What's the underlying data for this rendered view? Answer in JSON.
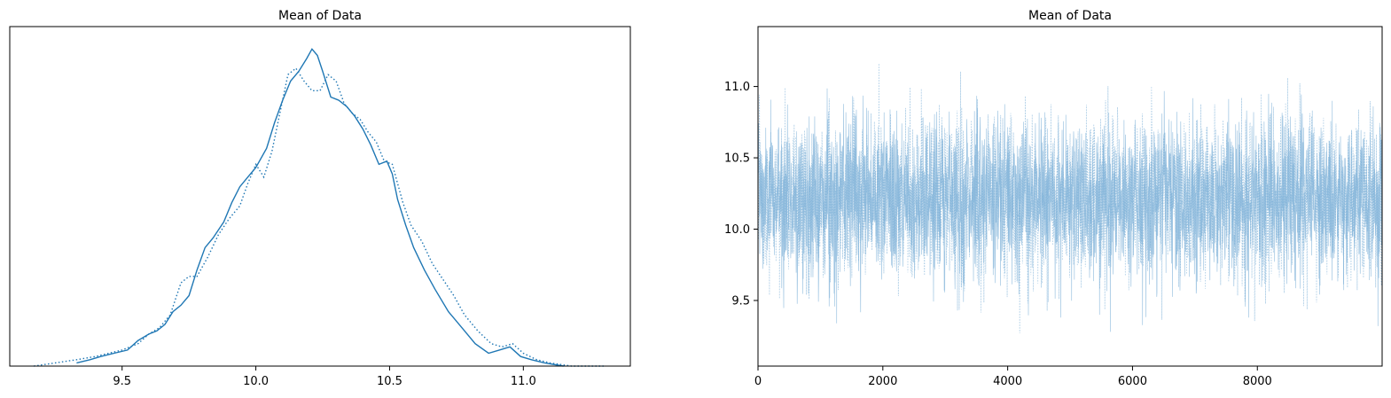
{
  "chart_data": [
    {
      "type": "line",
      "title": "Mean of Data",
      "xlabel": "",
      "ylabel": "",
      "xlim": [
        9.08,
        11.4
      ],
      "ylim": [
        0,
        1.06
      ],
      "xticks": [
        9.5,
        10.0,
        10.5,
        11.0
      ],
      "xtick_labels": [
        "9.5",
        "10.0",
        "10.5",
        "11.0"
      ],
      "yticks_visible": false,
      "grid": false,
      "colors": {
        "series": "#1f77b4"
      },
      "series": [
        {
          "style": "solid",
          "x": [
            9.33,
            9.38,
            9.42,
            9.47,
            9.52,
            9.56,
            9.6,
            9.63,
            9.66,
            9.69,
            9.72,
            9.75,
            9.78,
            9.81,
            9.84,
            9.88,
            9.91,
            9.94,
            9.97,
            10.0,
            10.04,
            10.07,
            10.1,
            10.13,
            10.16,
            10.19,
            10.21,
            10.23,
            10.25,
            10.28,
            10.31,
            10.34,
            10.37,
            10.4,
            10.43,
            10.46,
            10.49,
            10.51,
            10.53,
            10.56,
            10.59,
            10.63,
            10.67,
            10.72,
            10.77,
            10.82,
            10.87,
            10.91,
            10.95,
            10.99,
            11.03,
            11.08,
            11.15
          ],
          "y": [
            0.01,
            0.02,
            0.03,
            0.04,
            0.05,
            0.08,
            0.1,
            0.11,
            0.13,
            0.17,
            0.19,
            0.22,
            0.3,
            0.37,
            0.4,
            0.45,
            0.51,
            0.56,
            0.59,
            0.62,
            0.68,
            0.76,
            0.83,
            0.89,
            0.92,
            0.96,
            0.99,
            0.97,
            0.92,
            0.84,
            0.83,
            0.81,
            0.78,
            0.74,
            0.69,
            0.63,
            0.64,
            0.6,
            0.52,
            0.44,
            0.37,
            0.3,
            0.24,
            0.17,
            0.12,
            0.07,
            0.04,
            0.05,
            0.06,
            0.03,
            0.02,
            0.01,
            0.0
          ]
        },
        {
          "style": "dotted",
          "x": [
            9.17,
            9.25,
            9.33,
            9.4,
            9.45,
            9.5,
            9.56,
            9.6,
            9.64,
            9.68,
            9.72,
            9.75,
            9.78,
            9.82,
            9.86,
            9.9,
            9.94,
            9.97,
            10.0,
            10.03,
            10.06,
            10.09,
            10.12,
            10.15,
            10.18,
            10.21,
            10.24,
            10.27,
            10.3,
            10.33,
            10.36,
            10.39,
            10.42,
            10.45,
            10.48,
            10.51,
            10.55,
            10.58,
            10.62,
            10.66,
            10.7,
            10.74,
            10.78,
            10.83,
            10.88,
            10.92,
            10.96,
            11.0,
            11.05,
            11.1,
            11.18,
            11.3
          ],
          "y": [
            0.0,
            0.01,
            0.02,
            0.03,
            0.04,
            0.05,
            0.07,
            0.1,
            0.12,
            0.16,
            0.26,
            0.28,
            0.28,
            0.34,
            0.41,
            0.46,
            0.5,
            0.57,
            0.63,
            0.59,
            0.67,
            0.79,
            0.91,
            0.93,
            0.89,
            0.86,
            0.86,
            0.91,
            0.89,
            0.82,
            0.79,
            0.77,
            0.73,
            0.7,
            0.64,
            0.63,
            0.51,
            0.44,
            0.39,
            0.32,
            0.27,
            0.22,
            0.16,
            0.11,
            0.07,
            0.06,
            0.07,
            0.04,
            0.02,
            0.01,
            0.0,
            0.0
          ]
        }
      ]
    },
    {
      "type": "line",
      "title": "Mean of Data",
      "xlabel": "",
      "ylabel": "",
      "xlim": [
        0,
        9999
      ],
      "ylim": [
        9.04,
        11.42
      ],
      "xticks": [
        0,
        2000,
        4000,
        6000,
        8000
      ],
      "xtick_labels": [
        "0",
        "2000",
        "4000",
        "6000",
        "8000"
      ],
      "yticks": [
        9.5,
        10.0,
        10.5,
        11.0
      ],
      "ytick_labels": [
        "9.5",
        "10.0",
        "10.5",
        "11.0"
      ],
      "grid": false,
      "colors": {
        "series": "#7fb2d8"
      },
      "series": [
        {
          "style": "solid",
          "n": 10000,
          "mean": 10.22,
          "sd": 0.28,
          "min": 9.25,
          "max": 11.3
        },
        {
          "style": "dotted",
          "n": 10000,
          "mean": 10.22,
          "sd": 0.28,
          "min": 9.16,
          "max": 11.3
        }
      ]
    }
  ]
}
